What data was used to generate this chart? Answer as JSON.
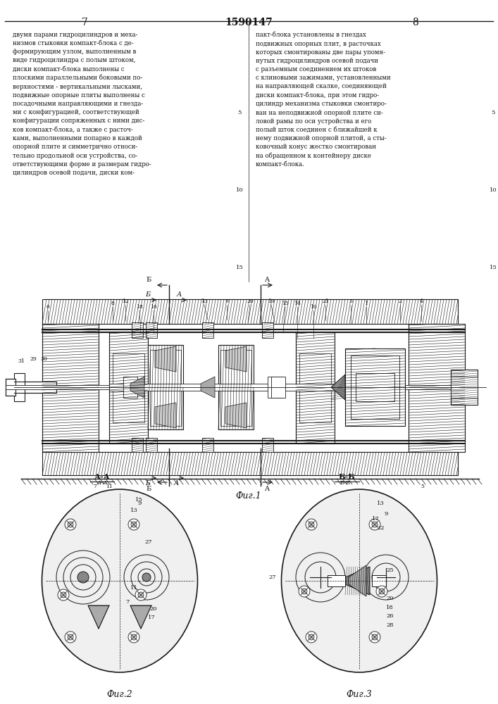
{
  "title": "1590147",
  "page_left": "7",
  "page_right": "8",
  "fig1_caption": "Фиг.1",
  "fig2_caption": "Фиг.2",
  "fig3_caption": "Фиг.3",
  "fig2_title": "А-А",
  "fig3_title": "Б-Б",
  "bg_color": "#ffffff",
  "line_color": "#1a1a1a",
  "hatch_color": "#333333",
  "text_color": "#111111",
  "text_left": "двумя парами гидроцилиндров и меха-\nнизмов стыковки компакт-блока с де-\nформирующим узлом, выполненным в\nвиде гидроцилиндра с полым штоком,\nдиски компакт-блока выполнены с\nплоскими параллельными боковыми по-\nверхностями - вертикальными лысками,\nподвижные опорные плиты выполнены с\nпосадочными направляющими и гнезда-\nми с конфигурацией, соответствующей\nконфигурации сопряженных с ними дис-\nков компакт-блока, а также с расточ-\nками, выполненными попарно в каждой\nопорной плите и симметрично относи-\nтельно продольной оси устройства, со-\nответствующими форме и размерам гидро-\nцилиндров осевой подачи, диски ком-",
  "text_right": "пакт-блока установлены в гнездах\nподвижных опорных плит, в расточках\nкоторых смонтированы две пары упомя-\nнутых гидроцилиндров осевой подачи\nс разъемным соединением их штоков\nс клиновыми зажимами, установленными\nна направляющей скалке, соединяющей\nдиски компакт-блока, при этом гидро-\nцилиндр механизма стыковки смонтиро-\nван на неподвижной опорной плите си-\nловой рамы по оси устройства и его\nполый шток соединен с ближайшей к\nнему подвижной опорной плитой, а сты-\nковочный конус жестко смонтирован\nна обращенном к контейнеру диске\nкомпакт-блока.",
  "line_numbers_left": [
    "5",
    "10",
    "15"
  ],
  "line_numbers_right": [
    "5",
    "10",
    "15"
  ]
}
